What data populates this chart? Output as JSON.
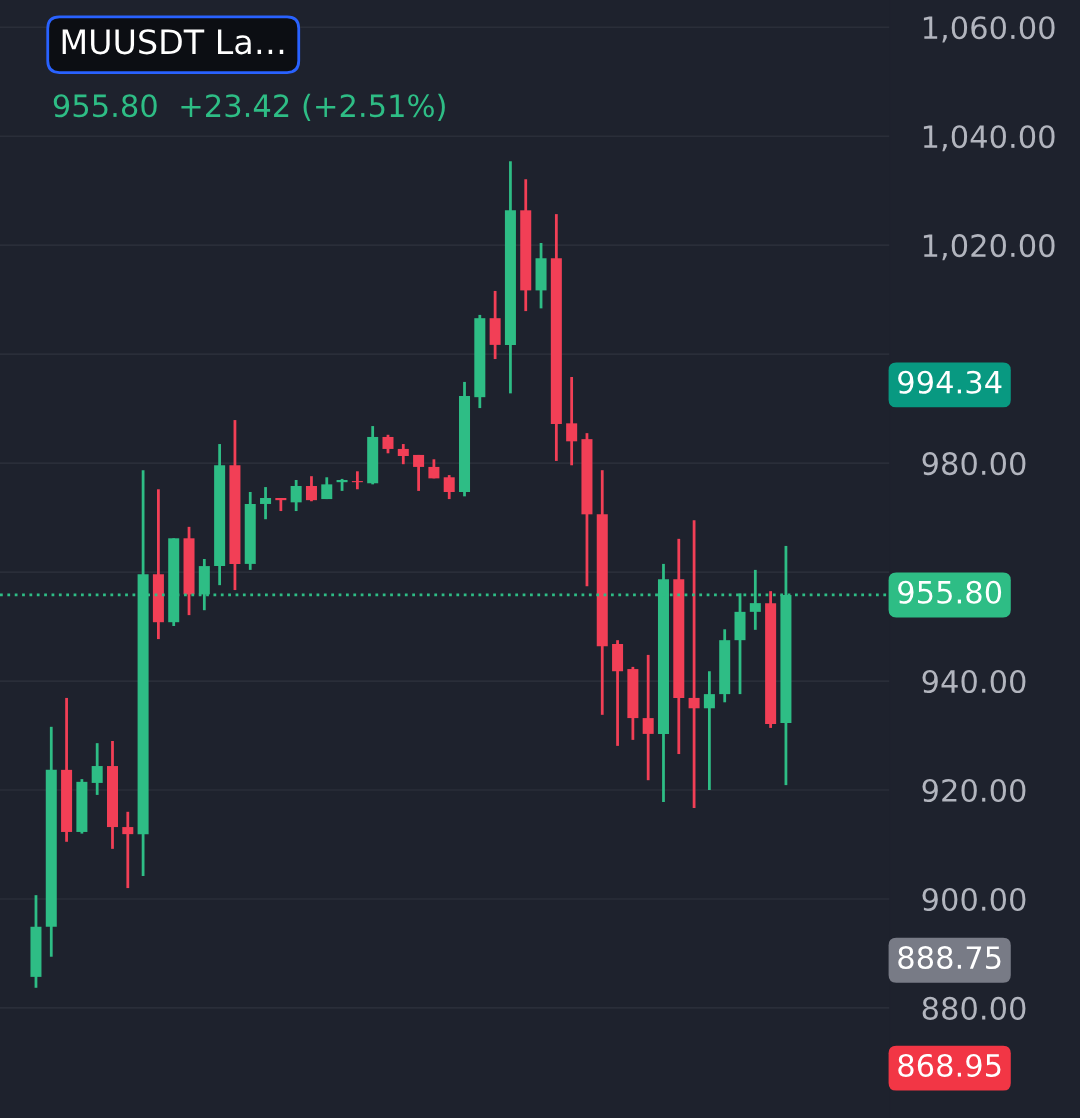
{
  "chart_data": {
    "type": "candlestick",
    "title": "MUUSDT La…",
    "subtitle": "955.80  +23.42 (+2.51%)",
    "categories": [
      null,
      null,
      null,
      null,
      null,
      null,
      null,
      null,
      null,
      null,
      null,
      null,
      null,
      null,
      null,
      null,
      null,
      null,
      null,
      null,
      null,
      null,
      null,
      null,
      null,
      null,
      null,
      null,
      null,
      null,
      null,
      null,
      null,
      null,
      null,
      null,
      null,
      null,
      null,
      null,
      null,
      null,
      null,
      null,
      null,
      null,
      null,
      null,
      null,
      null
    ],
    "ohlc": [
      [
        885.7,
        900.7,
        883.7,
        894.9
      ],
      [
        894.9,
        931.6,
        889.4,
        923.7
      ],
      [
        923.7,
        936.9,
        910.5,
        912.3
      ],
      [
        912.3,
        922.0,
        912.0,
        921.5
      ],
      [
        921.3,
        928.6,
        919.1,
        924.4
      ],
      [
        924.4,
        929.0,
        909.2,
        913.2
      ],
      [
        913.2,
        916.0,
        902.0,
        911.9
      ],
      [
        911.9,
        978.7,
        904.2,
        959.6
      ],
      [
        959.6,
        975.2,
        947.7,
        950.8
      ],
      [
        950.8,
        966.2,
        950.1,
        966.2
      ],
      [
        966.2,
        968.3,
        952.1,
        955.9
      ],
      [
        955.9,
        962.4,
        953.0,
        961.1
      ],
      [
        961.1,
        983.5,
        957.6,
        979.6
      ],
      [
        979.6,
        987.9,
        956.7,
        961.5
      ],
      [
        961.5,
        974.7,
        960.4,
        972.5
      ],
      [
        972.5,
        975.6,
        969.7,
        973.6
      ],
      [
        973.6,
        973.6,
        971.2,
        973.2
      ],
      [
        972.8,
        976.9,
        971.2,
        975.8
      ],
      [
        975.8,
        977.6,
        973.0,
        973.2
      ],
      [
        973.4,
        977.4,
        973.4,
        976.1
      ],
      [
        976.5,
        977.1,
        974.9,
        976.9
      ],
      [
        976.7,
        978.5,
        975.2,
        976.5
      ],
      [
        976.3,
        986.8,
        976.1,
        984.8
      ],
      [
        984.8,
        985.2,
        981.8,
        982.6
      ],
      [
        982.6,
        983.5,
        979.8,
        981.3
      ],
      [
        981.5,
        981.5,
        974.9,
        979.3
      ],
      [
        979.3,
        980.7,
        977.2,
        977.2
      ],
      [
        977.4,
        977.8,
        973.4,
        974.7
      ],
      [
        974.7,
        994.9,
        973.9,
        992.3
      ],
      [
        992.1,
        1007.2,
        990.1,
        1006.6
      ],
      [
        1006.6,
        1011.6,
        999.1,
        1001.7
      ],
      [
        1001.7,
        1035.4,
        992.8,
        1026.4
      ],
      [
        1026.4,
        1032.1,
        1007.9,
        1011.7
      ],
      [
        1011.7,
        1020.4,
        1008.4,
        1017.6
      ],
      [
        1017.6,
        1025.7,
        980.4,
        987.2
      ],
      [
        987.3,
        995.8,
        979.6,
        984.0
      ],
      [
        984.4,
        985.5,
        957.4,
        970.6
      ],
      [
        970.6,
        978.7,
        933.8,
        946.4
      ],
      [
        946.8,
        947.5,
        928.1,
        941.8
      ],
      [
        942.2,
        942.6,
        929.2,
        933.2
      ],
      [
        933.2,
        944.8,
        921.8,
        930.3
      ],
      [
        930.3,
        961.5,
        917.8,
        958.7
      ],
      [
        958.7,
        966.1,
        926.6,
        936.9
      ],
      [
        936.9,
        969.5,
        916.7,
        935.0
      ],
      [
        935.0,
        941.8,
        920.0,
        937.6
      ],
      [
        937.6,
        949.5,
        936.1,
        947.5
      ],
      [
        947.5,
        956.1,
        937.6,
        952.7
      ],
      [
        952.7,
        960.4,
        949.4,
        954.3
      ],
      [
        954.3,
        956.5,
        931.4,
        932.1
      ],
      [
        932.3,
        964.8,
        920.9,
        955.8
      ]
    ],
    "colors": [
      "#2ebd85",
      "#2ebd85",
      "#f23f56",
      "#2ebd85",
      "#2ebd85",
      "#f23f56",
      "#f23f56",
      "#2ebd85",
      "#f23f56",
      "#2ebd85",
      "#f23f56",
      "#2ebd85",
      "#2ebd85",
      "#f23f56",
      "#2ebd85",
      "#2ebd85",
      "#f23f56",
      "#2ebd85",
      "#f23f56",
      "#2ebd85",
      "#2ebd85",
      "#f23f56",
      "#2ebd85",
      "#f23f56",
      "#f23f56",
      "#f23f56",
      "#f23f56",
      "#f23f56",
      "#2ebd85",
      "#2ebd85",
      "#f23f56",
      "#2ebd85",
      "#f23f56",
      "#2ebd85",
      "#f23f56",
      "#f23f56",
      "#f23f56",
      "#f23f56",
      "#f23f56",
      "#f23f56",
      "#f23f56",
      "#2ebd85",
      "#f23f56",
      "#f23f56",
      "#2ebd85",
      "#2ebd85",
      "#2ebd85",
      "#2ebd85",
      "#f23f56",
      "#2ebd85"
    ],
    "ylim": [
      859.8,
      1065.0
    ],
    "yticks": [
      {
        "value": 880,
        "label": "880.00"
      },
      {
        "value": 900,
        "label": "900.00"
      },
      {
        "value": 920,
        "label": "920.00"
      },
      {
        "value": 940,
        "label": "940.00"
      },
      {
        "value": 960,
        "label": null
      },
      {
        "value": 980,
        "label": "980.00"
      },
      {
        "value": 1000,
        "label": null
      },
      {
        "value": 1020,
        "label": "1,020.00"
      },
      {
        "value": 1040,
        "label": "1,040.00"
      },
      {
        "value": 1060,
        "label": "1,060.00"
      }
    ],
    "grid": "y",
    "ref_lines": [
      {
        "axis": "y",
        "value": 955.8,
        "label": "955.80",
        "color": "#2ebd85",
        "line_style": "dotted"
      }
    ],
    "annotations": [
      "994.34",
      "888.75",
      "868.95"
    ]
  }
}
